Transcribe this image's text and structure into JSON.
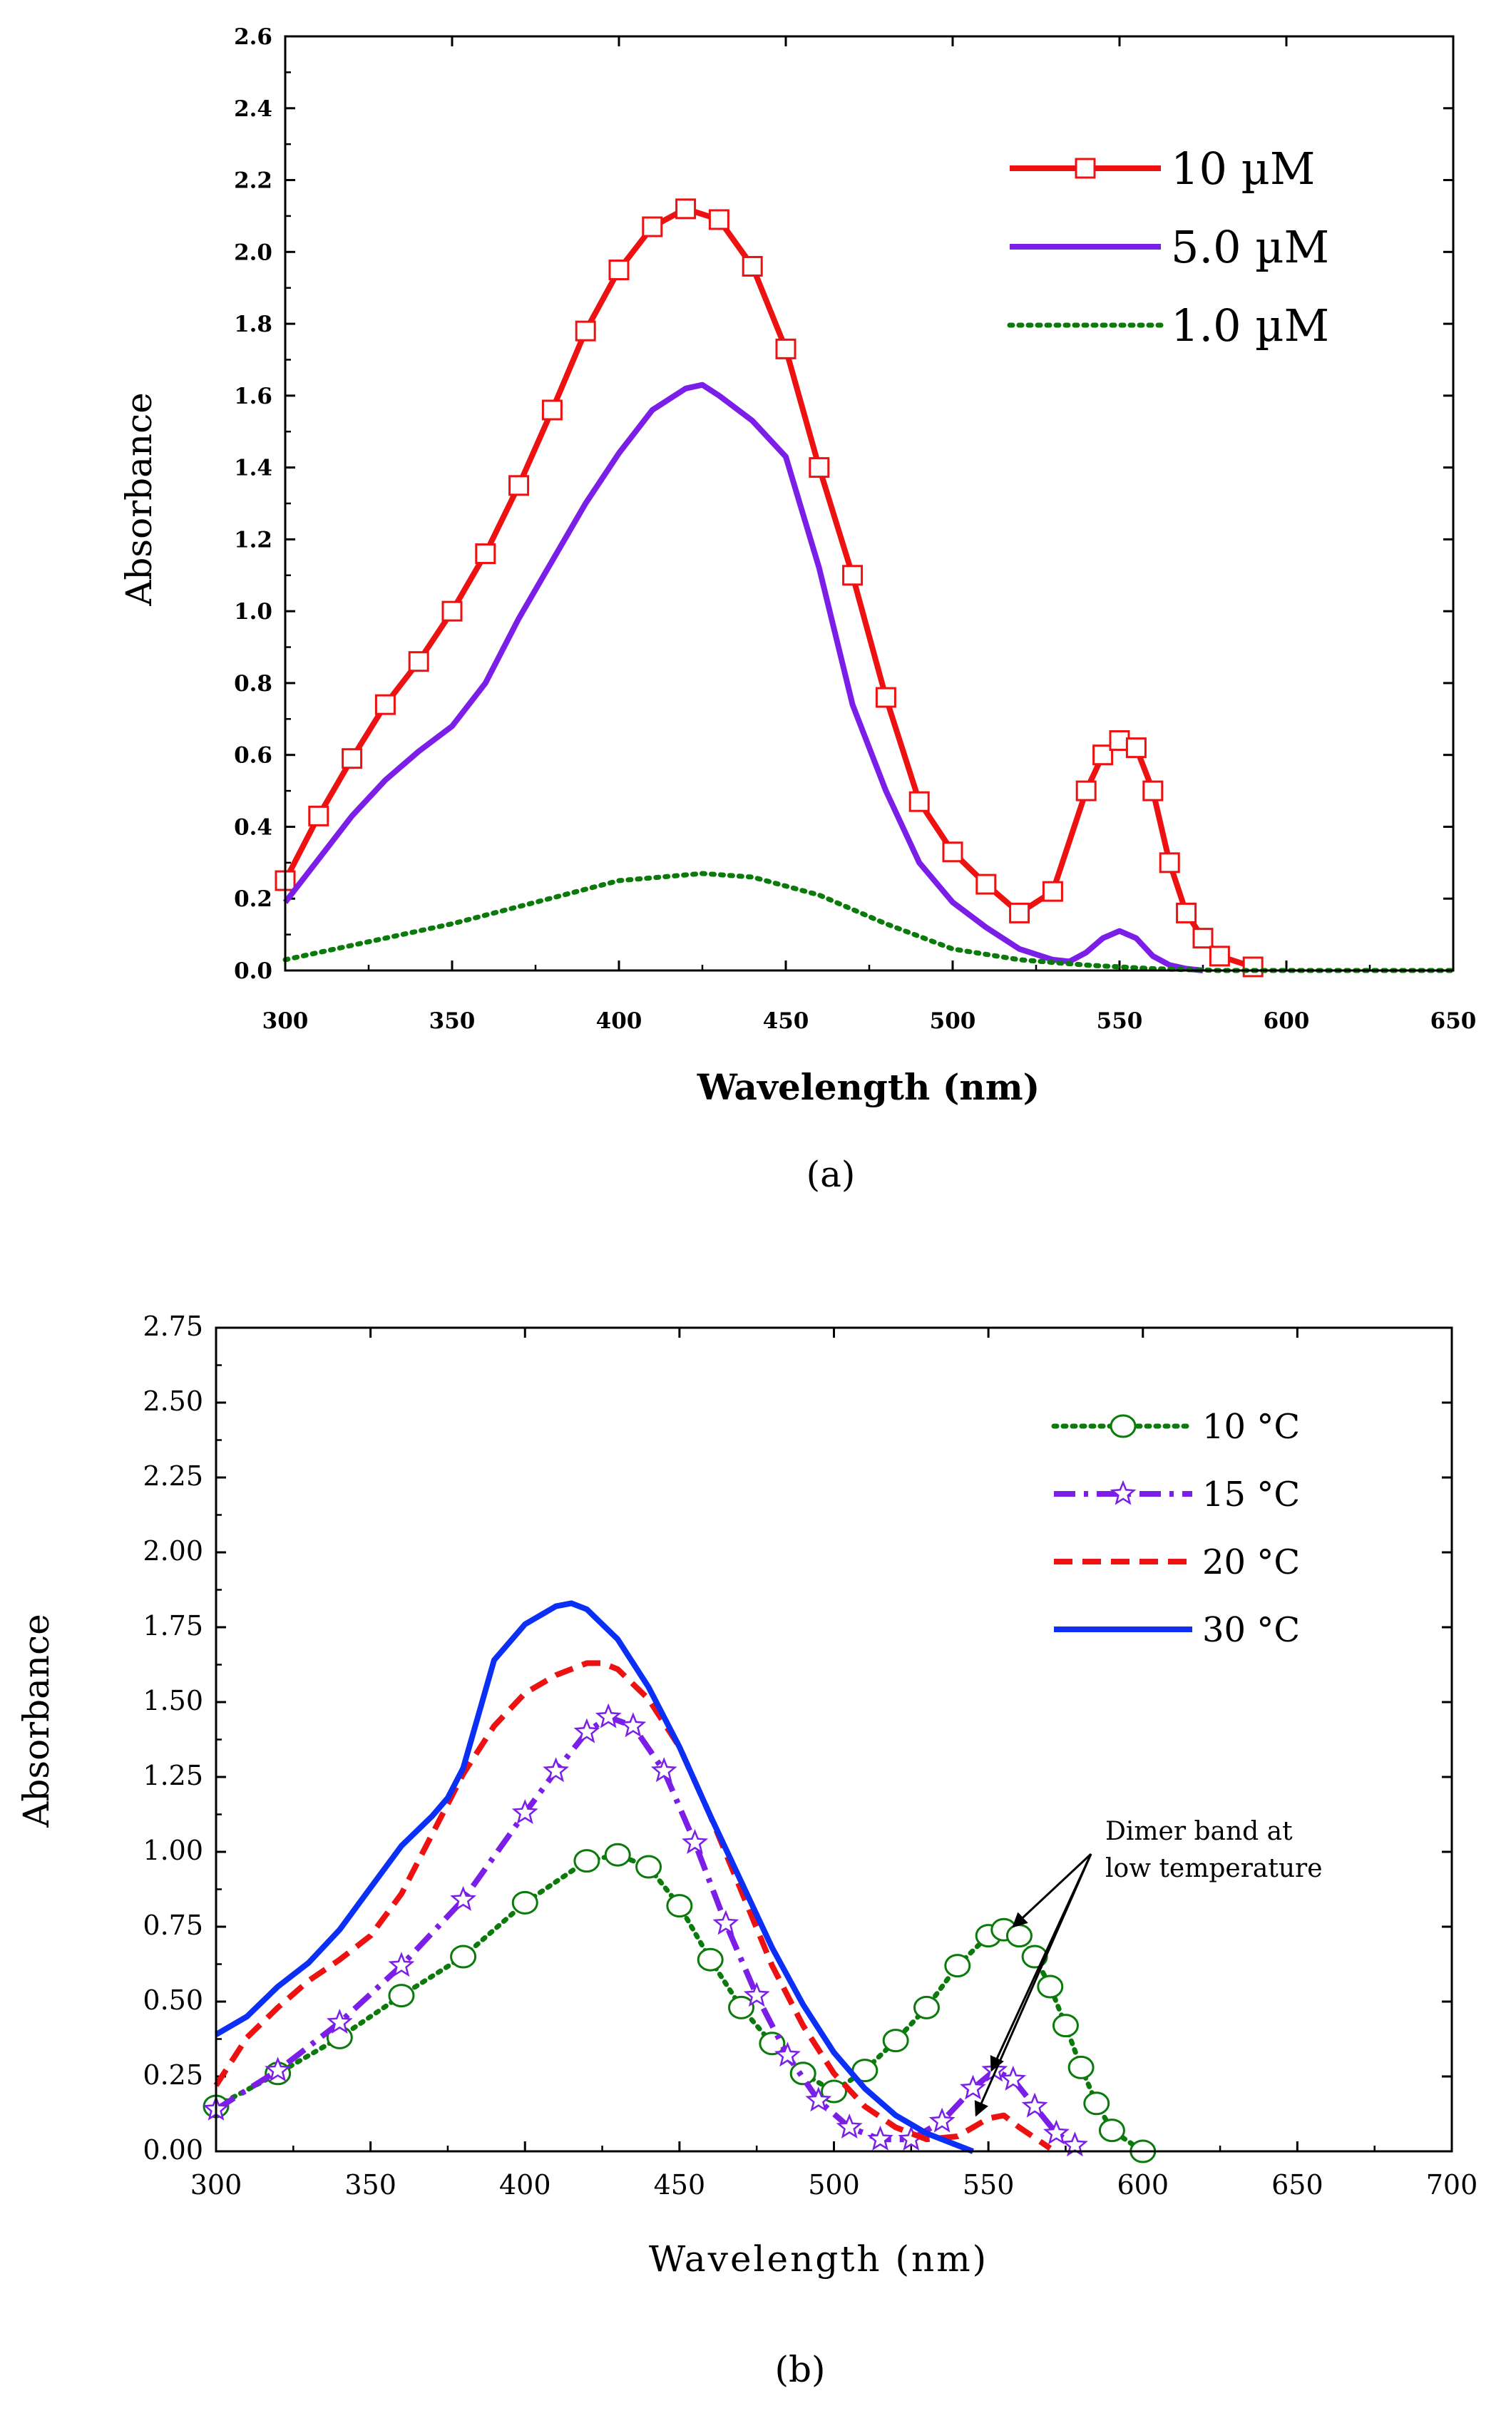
{
  "chart_data": [
    {
      "id": "a",
      "type": "line",
      "caption": "(a)",
      "xlabel": "Wavelength (nm)",
      "ylabel": "Absorbance",
      "xlim": [
        300,
        650
      ],
      "ylim": [
        0,
        2.6
      ],
      "xticks": [
        300,
        350,
        400,
        450,
        500,
        550,
        600,
        650
      ],
      "yticks": [
        0.0,
        0.2,
        0.4,
        0.6,
        0.8,
        1.0,
        1.2,
        1.4,
        1.6,
        1.8,
        2.0,
        2.2,
        2.4,
        2.6
      ],
      "ytick_decimals": 1,
      "legend_position": "top-right",
      "series": [
        {
          "name": "10 µM",
          "color": "#ee1111",
          "style": "solid",
          "width": 8,
          "marker": "square",
          "x": [
            300,
            310,
            320,
            330,
            340,
            350,
            360,
            370,
            380,
            390,
            400,
            410,
            420,
            430,
            440,
            450,
            460,
            470,
            480,
            490,
            500,
            510,
            520,
            530,
            540,
            545,
            550,
            555,
            560,
            565,
            570,
            575,
            580,
            590
          ],
          "y": [
            0.25,
            0.43,
            0.59,
            0.74,
            0.86,
            1.0,
            1.16,
            1.35,
            1.56,
            1.78,
            1.95,
            2.07,
            2.12,
            2.09,
            1.96,
            1.73,
            1.4,
            1.1,
            0.76,
            0.47,
            0.33,
            0.24,
            0.16,
            0.22,
            0.5,
            0.6,
            0.64,
            0.62,
            0.5,
            0.3,
            0.16,
            0.09,
            0.04,
            0.01
          ]
        },
        {
          "name": "5.0 µM",
          "color": "#7b1fe8",
          "style": "solid",
          "width": 8,
          "marker": "none",
          "x": [
            300,
            310,
            320,
            330,
            340,
            350,
            360,
            370,
            380,
            390,
            400,
            410,
            420,
            425,
            430,
            440,
            450,
            460,
            470,
            480,
            490,
            500,
            510,
            520,
            530,
            535,
            540,
            545,
            550,
            555,
            560,
            565,
            570,
            575
          ],
          "y": [
            0.19,
            0.31,
            0.43,
            0.53,
            0.61,
            0.68,
            0.8,
            0.98,
            1.14,
            1.3,
            1.44,
            1.56,
            1.62,
            1.63,
            1.6,
            1.53,
            1.43,
            1.12,
            0.74,
            0.5,
            0.3,
            0.19,
            0.12,
            0.06,
            0.03,
            0.025,
            0.05,
            0.09,
            0.11,
            0.09,
            0.04,
            0.015,
            0.005,
            0.0
          ]
        },
        {
          "name": "1.0 µM",
          "color": "#0a7a0a",
          "style": "dotted",
          "width": 7,
          "marker": "none",
          "x": [
            300,
            325,
            350,
            375,
            400,
            425,
            440,
            460,
            480,
            500,
            520,
            540,
            560,
            580,
            600,
            650
          ],
          "y": [
            0.03,
            0.08,
            0.13,
            0.19,
            0.25,
            0.27,
            0.26,
            0.21,
            0.13,
            0.06,
            0.03,
            0.015,
            0.005,
            0.0,
            0.0,
            0.0
          ]
        }
      ]
    },
    {
      "id": "b",
      "type": "line",
      "caption": "(b)",
      "xlabel": "Wavelength (nm)",
      "ylabel": "Absorbance",
      "xlim": [
        300,
        700
      ],
      "ylim": [
        0,
        2.75
      ],
      "xticks": [
        300,
        350,
        400,
        450,
        500,
        550,
        600,
        650,
        700
      ],
      "yticks": [
        0.0,
        0.25,
        0.5,
        0.75,
        1.0,
        1.25,
        1.5,
        1.75,
        2.0,
        2.25,
        2.5,
        2.75
      ],
      "ytick_decimals": 2,
      "legend_position": "top-right",
      "annotation": {
        "text": [
          "Dimer band at",
          "low temperature"
        ],
        "arrow_targets": [
          [
            558,
            0.75
          ],
          [
            551,
            0.27
          ],
          [
            546,
            0.12
          ]
        ]
      },
      "series": [
        {
          "name": "10 °C",
          "color": "#0a7a0a",
          "style": "dotted",
          "width": 7,
          "marker": "circle",
          "x": [
            300,
            320,
            340,
            360,
            380,
            400,
            420,
            430,
            440,
            450,
            460,
            470,
            480,
            490,
            500,
            510,
            520,
            530,
            540,
            550,
            555,
            560,
            565,
            570,
            575,
            580,
            585,
            590,
            600
          ],
          "y": [
            0.15,
            0.26,
            0.38,
            0.52,
            0.65,
            0.83,
            0.97,
            0.99,
            0.95,
            0.82,
            0.64,
            0.48,
            0.36,
            0.26,
            0.2,
            0.27,
            0.37,
            0.48,
            0.62,
            0.72,
            0.74,
            0.72,
            0.65,
            0.55,
            0.42,
            0.28,
            0.16,
            0.07,
            0.0
          ]
        },
        {
          "name": "15 °C",
          "color": "#7b1fe8",
          "style": "dashdot",
          "width": 8,
          "marker": "star",
          "x": [
            300,
            320,
            340,
            360,
            380,
            400,
            410,
            420,
            427,
            435,
            445,
            455,
            465,
            475,
            485,
            495,
            505,
            515,
            525,
            535,
            545,
            552,
            558,
            565,
            572,
            578
          ],
          "y": [
            0.14,
            0.27,
            0.43,
            0.62,
            0.84,
            1.13,
            1.27,
            1.4,
            1.45,
            1.42,
            1.27,
            1.03,
            0.76,
            0.52,
            0.32,
            0.17,
            0.08,
            0.04,
            0.04,
            0.1,
            0.21,
            0.27,
            0.24,
            0.15,
            0.06,
            0.02
          ]
        },
        {
          "name": "20 °C",
          "color": "#ee1111",
          "style": "dashed",
          "width": 8,
          "marker": "none",
          "x": [
            300,
            310,
            320,
            330,
            340,
            350,
            360,
            370,
            380,
            390,
            400,
            410,
            420,
            425,
            430,
            440,
            450,
            460,
            470,
            480,
            490,
            500,
            510,
            520,
            530,
            540,
            550,
            555,
            560,
            570
          ],
          "y": [
            0.22,
            0.38,
            0.48,
            0.57,
            0.64,
            0.72,
            0.86,
            1.06,
            1.26,
            1.42,
            1.53,
            1.59,
            1.63,
            1.63,
            1.61,
            1.51,
            1.35,
            1.12,
            0.87,
            0.62,
            0.42,
            0.26,
            0.15,
            0.08,
            0.04,
            0.05,
            0.11,
            0.12,
            0.08,
            0.01
          ]
        },
        {
          "name": "30 °C",
          "color": "#0b2ff5",
          "style": "solid",
          "width": 8,
          "marker": "none",
          "x": [
            300,
            310,
            320,
            330,
            340,
            350,
            360,
            370,
            375,
            380,
            385,
            390,
            400,
            410,
            415,
            420,
            430,
            440,
            450,
            460,
            470,
            480,
            490,
            500,
            510,
            520,
            530,
            540,
            545
          ],
          "y": [
            0.39,
            0.45,
            0.55,
            0.63,
            0.74,
            0.88,
            1.02,
            1.12,
            1.18,
            1.28,
            1.46,
            1.64,
            1.76,
            1.82,
            1.83,
            1.81,
            1.71,
            1.55,
            1.35,
            1.12,
            0.9,
            0.68,
            0.49,
            0.33,
            0.21,
            0.12,
            0.06,
            0.02,
            0.0
          ]
        }
      ]
    }
  ]
}
